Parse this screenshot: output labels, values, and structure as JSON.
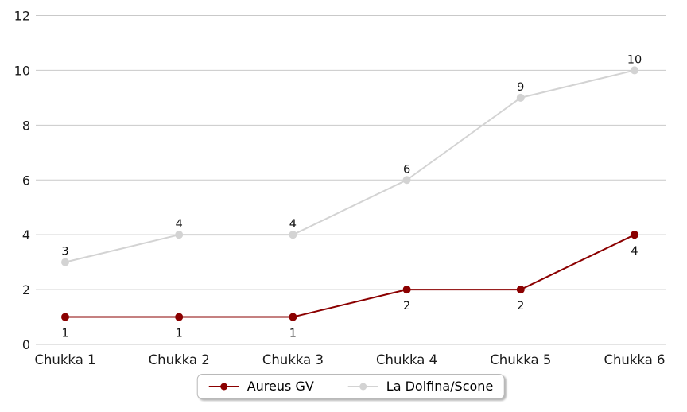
{
  "chart_data": {
    "type": "line",
    "title": "",
    "xlabel": "",
    "ylabel": "",
    "categories": [
      "Chukka 1",
      "Chukka 2",
      "Chukka 3",
      "Chukka 4",
      "Chukka 5",
      "Chukka 6"
    ],
    "series": [
      {
        "name": "Aureus GV",
        "values": [
          1,
          1,
          1,
          2,
          2,
          4
        ],
        "color": "#8B0000",
        "marker": "circle",
        "label_position": "below"
      },
      {
        "name": "La Dolfina/Scone",
        "values": [
          3,
          4,
          4,
          6,
          9,
          10
        ],
        "color": "#D3D3D3",
        "marker": "circle",
        "label_position": "above"
      }
    ],
    "yticks": [
      0,
      2,
      4,
      6,
      8,
      10,
      12
    ],
    "ylim": [
      0,
      12
    ],
    "grid": true,
    "grid_axis": "y",
    "data_labels": true,
    "legend_position": "bottom-center",
    "colors": {
      "background": "#ffffff",
      "gridline": "#c9c9c9",
      "tick_label": "#1a1a1a",
      "data_label": "#111111",
      "legend_border": "#b9b9b9"
    }
  }
}
